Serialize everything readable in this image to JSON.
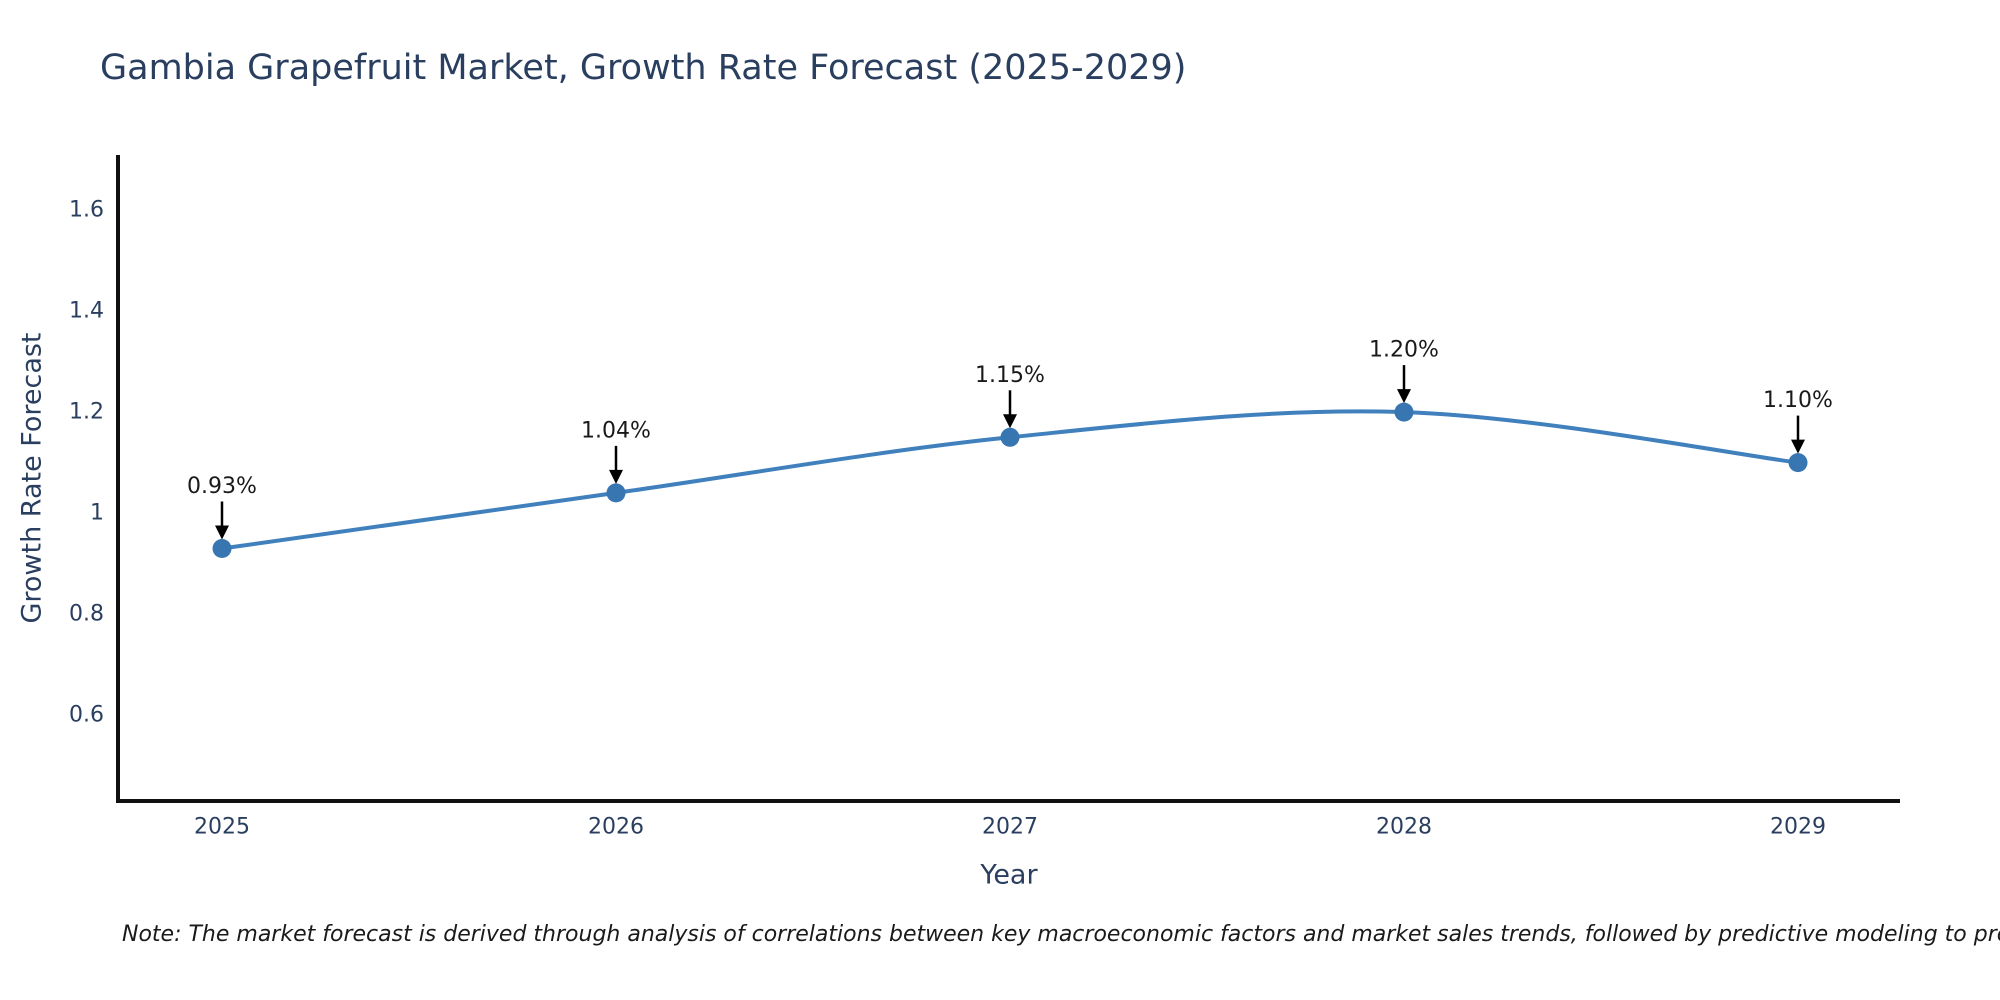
{
  "chart_data": {
    "type": "line",
    "title": "Gambia Grapefruit Market, Growth Rate Forecast (2025-2029)",
    "xlabel": "Year",
    "ylabel": "Growth Rate Forecast",
    "x": [
      2025,
      2026,
      2027,
      2028,
      2029
    ],
    "x_tick_labels": [
      "2025",
      "2026",
      "2027",
      "2028",
      "2029"
    ],
    "series": [
      {
        "name": "Growth Rate Forecast",
        "values": [
          0.93,
          1.04,
          1.15,
          1.2,
          1.1
        ]
      }
    ],
    "point_labels": [
      "0.93%",
      "1.04%",
      "1.15%",
      "1.20%",
      "1.10%"
    ],
    "yticks": [
      0.6,
      0.8,
      1,
      1.2,
      1.4,
      1.6
    ],
    "ytick_labels": [
      "0.6",
      "0.8",
      "1",
      "1.2",
      "1.4",
      "1.6"
    ],
    "ylim": [
      0.43,
      1.709
    ],
    "xlim": [
      2024.736,
      2029.259
    ],
    "line_shape": "spline",
    "grid": false,
    "legend_position": "none",
    "annotation_arrow": "down-to-point"
  },
  "note": {
    "text": "Note: The market forecast is derived through analysis of correlations between key macroeconomic factors and market sales trends, followed by predictive modeling to project future sales"
  },
  "colors": {
    "background": "#ffffff",
    "title": "#2a3f5f",
    "axis_title": "#2a3f5f",
    "tick_label": "#2a3f5f",
    "axis_line": "#101010",
    "series_line": "#4080bd",
    "marker": "#3876b2",
    "annotation_text": "#1a1a1a",
    "annotation_arrow": "#000000",
    "note_text": "#1a1a1a"
  }
}
